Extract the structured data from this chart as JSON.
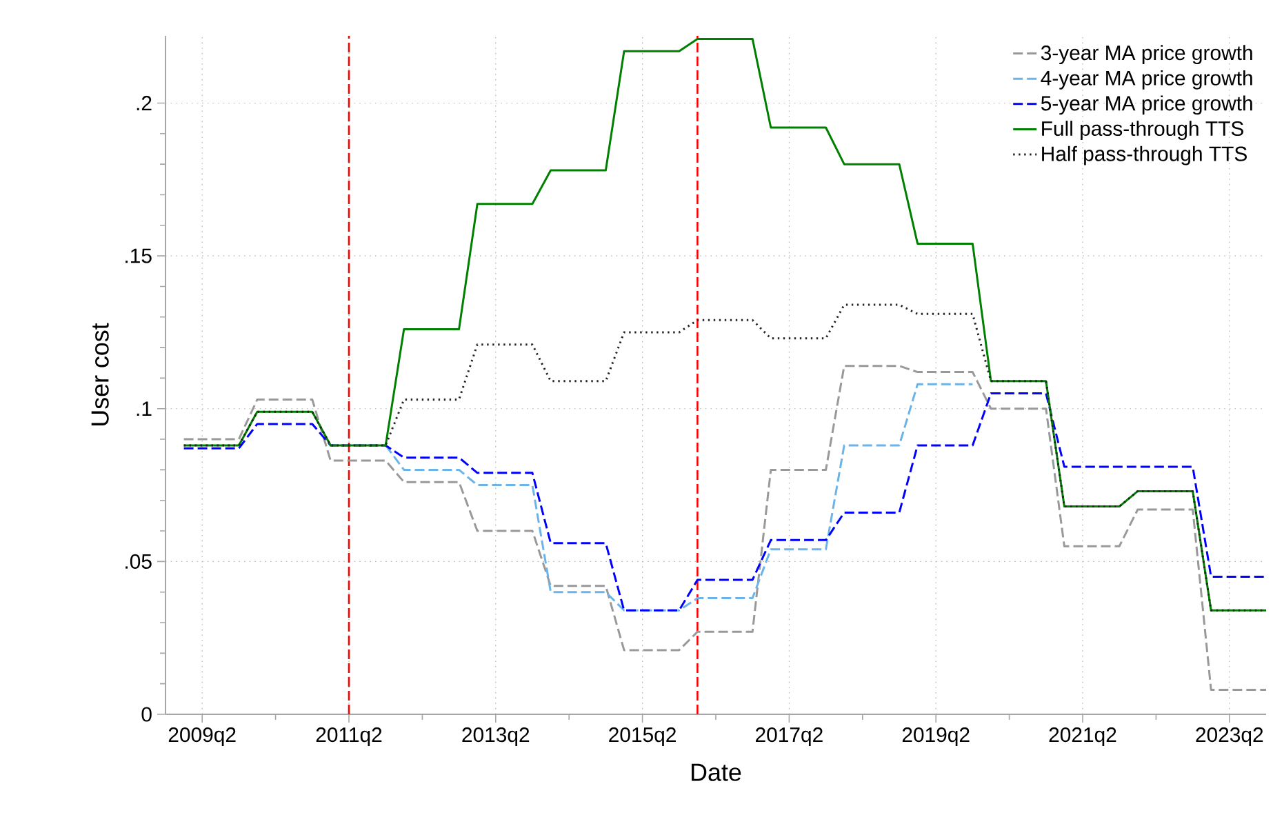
{
  "chart_data": {
    "type": "line",
    "xlabel": "Date",
    "ylabel": "User cost",
    "xlim": [
      "2008-10",
      "2023-10"
    ],
    "ylim": [
      0,
      0.222
    ],
    "xticks": [
      {
        "value": "2009-04",
        "label": "2009q2"
      },
      {
        "value": "2011-04",
        "label": "2011q2"
      },
      {
        "value": "2013-04",
        "label": "2013q2"
      },
      {
        "value": "2015-04",
        "label": "2015q2"
      },
      {
        "value": "2017-04",
        "label": "2017q2"
      },
      {
        "value": "2019-04",
        "label": "2019q2"
      },
      {
        "value": "2021-04",
        "label": "2021q2"
      },
      {
        "value": "2023-04",
        "label": "2023q2"
      }
    ],
    "yticks": [
      0,
      {
        "value": 0.05,
        "label": ".05"
      },
      {
        "value": 0.1,
        "label": ".1"
      },
      {
        "value": 0.15,
        "label": ".15"
      },
      {
        "value": 0.2,
        "label": ".2"
      }
    ],
    "grid": true,
    "legend": "top right",
    "ref_lines": [
      {
        "axis": "x",
        "value": "2011-04",
        "color": "#ff0000",
        "line_style": "dashed"
      },
      {
        "axis": "x",
        "value": "2016-01",
        "color": "#ff0000",
        "line_style": "dashed"
      }
    ],
    "series": [
      {
        "name": "3-year MA price growth",
        "color": "#999999",
        "line_style": "dashed",
        "x": [
          "2009-01",
          "2009-10",
          "2010-01",
          "2010-10",
          "2011-01",
          "2011-10",
          "2012-01",
          "2012-10",
          "2013-01",
          "2013-10",
          "2014-01",
          "2014-10",
          "2015-01",
          "2015-10",
          "2016-01",
          "2016-10",
          "2017-01",
          "2017-10",
          "2018-01",
          "2018-10",
          "2019-01",
          "2019-10",
          "2020-01",
          "2020-10",
          "2021-01",
          "2021-10",
          "2022-01",
          "2022-10",
          "2023-01",
          "2023-10"
        ],
        "values": [
          0.09,
          0.09,
          0.103,
          0.103,
          0.083,
          0.083,
          0.076,
          0.076,
          0.06,
          0.06,
          0.042,
          0.042,
          0.021,
          0.021,
          0.027,
          0.027,
          0.08,
          0.08,
          0.114,
          0.114,
          0.112,
          0.112,
          0.1,
          0.1,
          0.055,
          0.055,
          0.067,
          0.067,
          0.008,
          0.008
        ]
      },
      {
        "name": "4-year MA price growth",
        "color": "#6cb4e8",
        "line_style": "dashed",
        "x": [
          "2011-10",
          "2012-01",
          "2012-10",
          "2013-01",
          "2013-10",
          "2014-01",
          "2014-10",
          "2015-01",
          "2015-10",
          "2016-01",
          "2016-10",
          "2017-01",
          "2017-10",
          "2018-01",
          "2018-10",
          "2019-01",
          "2019-10"
        ],
        "values": [
          0.088,
          0.08,
          0.08,
          0.075,
          0.075,
          0.04,
          0.04,
          0.034,
          0.034,
          0.038,
          0.038,
          0.054,
          0.054,
          0.088,
          0.088,
          0.108,
          0.108
        ]
      },
      {
        "name": "5-year MA price growth",
        "color": "#0000ff",
        "line_style": "dashed",
        "x": [
          "2009-01",
          "2009-10",
          "2010-01",
          "2010-10",
          "2011-01",
          "2011-10",
          "2012-01",
          "2012-10",
          "2013-01",
          "2013-10",
          "2014-01",
          "2014-10",
          "2015-01",
          "2015-10",
          "2016-01",
          "2016-10",
          "2017-01",
          "2017-10",
          "2018-01",
          "2018-10",
          "2019-01",
          "2019-10",
          "2020-01",
          "2020-10",
          "2021-01",
          "2021-10",
          "2022-01",
          "2022-10",
          "2023-01",
          "2023-10"
        ],
        "values": [
          0.087,
          0.087,
          0.095,
          0.095,
          0.088,
          0.088,
          0.084,
          0.084,
          0.079,
          0.079,
          0.056,
          0.056,
          0.034,
          0.034,
          0.044,
          0.044,
          0.057,
          0.057,
          0.066,
          0.066,
          0.088,
          0.088,
          0.105,
          0.105,
          0.081,
          0.081,
          0.081,
          0.081,
          0.045,
          0.045
        ]
      },
      {
        "name": "Full pass-through TTS",
        "color": "#008000",
        "line_style": "solid",
        "x": [
          "2009-01",
          "2009-10",
          "2010-01",
          "2010-10",
          "2011-01",
          "2011-10",
          "2012-01",
          "2012-10",
          "2013-01",
          "2013-10",
          "2014-01",
          "2014-10",
          "2015-01",
          "2015-10",
          "2016-01",
          "2016-10",
          "2017-01",
          "2017-10",
          "2018-01",
          "2018-10",
          "2019-01",
          "2019-10",
          "2020-01",
          "2020-10",
          "2021-01",
          "2021-10",
          "2022-01",
          "2022-10",
          "2023-01",
          "2023-10"
        ],
        "values": [
          0.088,
          0.088,
          0.099,
          0.099,
          0.088,
          0.088,
          0.126,
          0.126,
          0.167,
          0.167,
          0.178,
          0.178,
          0.217,
          0.217,
          0.221,
          0.221,
          0.192,
          0.192,
          0.18,
          0.18,
          0.154,
          0.154,
          0.109,
          0.109,
          0.068,
          0.068,
          0.073,
          0.073,
          0.034,
          0.034
        ]
      },
      {
        "name": "Half pass-through TTS",
        "color": "#222222",
        "line_style": "dotted",
        "x": [
          "2009-01",
          "2009-10",
          "2010-01",
          "2010-10",
          "2011-01",
          "2011-10",
          "2012-01",
          "2012-10",
          "2013-01",
          "2013-10",
          "2014-01",
          "2014-10",
          "2015-01",
          "2015-10",
          "2016-01",
          "2016-10",
          "2017-01",
          "2017-10",
          "2018-01",
          "2018-10",
          "2019-01",
          "2019-10",
          "2020-01",
          "2020-10",
          "2021-01",
          "2021-10",
          "2022-01",
          "2022-10",
          "2023-01",
          "2023-10"
        ],
        "values": [
          0.088,
          0.088,
          0.099,
          0.099,
          0.088,
          0.088,
          0.103,
          0.103,
          0.121,
          0.121,
          0.109,
          0.109,
          0.125,
          0.125,
          0.129,
          0.129,
          0.123,
          0.123,
          0.134,
          0.134,
          0.131,
          0.131,
          0.109,
          0.109,
          0.068,
          0.068,
          0.073,
          0.073,
          0.034,
          0.034
        ]
      }
    ]
  }
}
